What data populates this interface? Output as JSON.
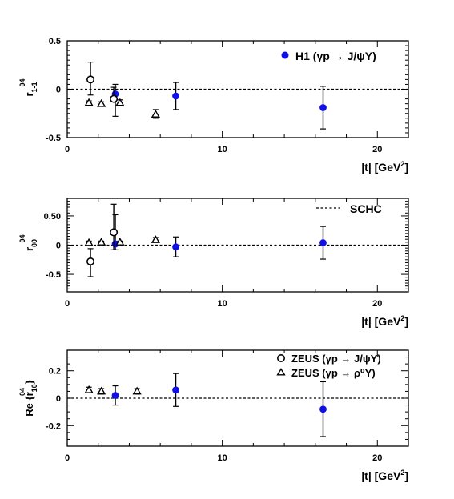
{
  "chart_data": [
    {
      "type": "scatter",
      "ylabel_main": "r",
      "ylabel_sup": "04",
      "ylabel_sub": "1-1",
      "xlabel": "|t|  [GeV",
      "xlabel_sup": "2",
      "xlabel_end": "]",
      "xlim": [
        0,
        22
      ],
      "ylim": [
        -0.5,
        0.5
      ],
      "xticks": [
        0,
        10,
        20
      ],
      "yticks": [
        -0.5,
        0,
        0.5
      ],
      "ytick_labels": [
        "-0.5",
        "0",
        "0.5"
      ],
      "legend": [
        "H1 (γp → J/ψY)"
      ],
      "legend_placement": "top-right",
      "reference_line": 0,
      "series": [
        {
          "name": "H1 (γp → J/ψY)",
          "marker": "filled-circle",
          "x": [
            3.1,
            7.0,
            16.5
          ],
          "y": [
            -0.05,
            -0.07,
            -0.19
          ],
          "yerr_low": [
            -0.28,
            -0.21,
            -0.41
          ],
          "yerr_high": [
            0.05,
            0.07,
            0.03
          ]
        },
        {
          "name": "ZEUS (γp → J/ψY)",
          "marker": "open-circle",
          "x": [
            1.5,
            3.0
          ],
          "y": [
            0.1,
            -0.1
          ],
          "yerr_low": [
            -0.06,
            -0.12
          ],
          "yerr_high": [
            0.28,
            0.02
          ]
        },
        {
          "name": "ZEUS (γp → ρ⁰Y)",
          "marker": "open-triangle",
          "x": [
            1.4,
            2.2,
            3.4,
            5.7
          ],
          "y": [
            -0.14,
            -0.15,
            -0.14,
            -0.26
          ],
          "yerr_low": [
            -0.16,
            -0.17,
            -0.16,
            -0.3
          ],
          "yerr_high": [
            -0.12,
            -0.13,
            -0.11,
            -0.21
          ]
        }
      ]
    },
    {
      "type": "scatter",
      "ylabel_main": "r",
      "ylabel_sup": "04",
      "ylabel_sub": "00",
      "xlabel": "|t|  [GeV",
      "xlabel_sup": "2",
      "xlabel_end": "]",
      "xlim": [
        0,
        22
      ],
      "ylim": [
        -0.8,
        0.8
      ],
      "xticks": [
        0,
        10,
        20
      ],
      "yticks": [
        -0.5,
        0,
        0.5
      ],
      "ytick_labels": [
        "-0.5",
        "0",
        "0.50"
      ],
      "legend": [
        "SCHC"
      ],
      "legend_placement": "top-right",
      "reference_line": 0,
      "series": [
        {
          "name": "H1 (γp → J/ψY)",
          "marker": "filled-circle",
          "x": [
            3.1,
            7.0,
            16.5
          ],
          "y": [
            0.02,
            -0.03,
            0.04
          ],
          "yerr_low": [
            -0.08,
            -0.2,
            -0.24
          ],
          "yerr_high": [
            0.52,
            0.14,
            0.32
          ]
        },
        {
          "name": "ZEUS (γp → J/ψY)",
          "marker": "open-circle",
          "x": [
            1.5,
            3.0
          ],
          "y": [
            -0.28,
            0.22
          ],
          "yerr_low": [
            -0.54,
            -0.08
          ],
          "yerr_high": [
            -0.06,
            0.7
          ]
        },
        {
          "name": "ZEUS (γp → ρ⁰Y)",
          "marker": "open-triangle",
          "x": [
            1.4,
            2.2,
            3.4,
            5.7
          ],
          "y": [
            0.04,
            0.05,
            0.05,
            0.09
          ],
          "yerr_low": [
            0.01,
            0.03,
            0.03,
            0.05
          ],
          "yerr_high": [
            0.07,
            0.07,
            0.07,
            0.13
          ]
        }
      ]
    },
    {
      "type": "scatter",
      "ylabel_main": "Re {r",
      "ylabel_sup": "04",
      "ylabel_sub": "10",
      "ylabel_end": "}",
      "xlabel": "|t|  [GeV",
      "xlabel_sup": "2",
      "xlabel_end": "]",
      "xlim": [
        0,
        22
      ],
      "ylim": [
        -0.35,
        0.35
      ],
      "xticks": [
        0,
        10,
        20
      ],
      "yticks": [
        -0.2,
        0,
        0.2
      ],
      "ytick_labels": [
        "-0.2",
        "0",
        "0.2"
      ],
      "legend": [
        "ZEUS (γp → J/ψY)",
        "ZEUS (γp → ρ⁰Y)"
      ],
      "legend_placement": "top-right",
      "reference_line": 0,
      "series": [
        {
          "name": "H1 (γp → J/ψY)",
          "marker": "filled-circle",
          "x": [
            3.1,
            7.0,
            16.5
          ],
          "y": [
            0.02,
            0.06,
            -0.08
          ],
          "yerr_low": [
            -0.05,
            -0.06,
            -0.28
          ],
          "yerr_high": [
            0.09,
            0.18,
            0.12
          ]
        },
        {
          "name": "ZEUS (γp → ρ⁰Y)",
          "marker": "open-triangle",
          "x": [
            1.4,
            2.2,
            4.5
          ],
          "y": [
            0.06,
            0.05,
            0.05
          ],
          "yerr_low": [
            0.04,
            0.03,
            0.03
          ],
          "yerr_high": [
            0.08,
            0.07,
            0.07
          ]
        }
      ]
    }
  ]
}
